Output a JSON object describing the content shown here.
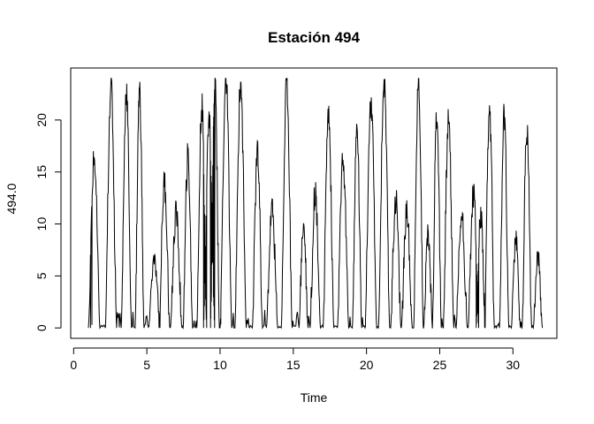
{
  "chart_data": {
    "type": "line",
    "title": "Estación 494",
    "xlabel": "Time",
    "ylabel": "494.0",
    "xlim": [
      -0.2,
      33.0
    ],
    "ylim": [
      -1.0,
      25.0
    ],
    "xticks": [
      0,
      5,
      10,
      15,
      20,
      25,
      30
    ],
    "xtick_labels": [
      "0",
      "5",
      "10",
      "15",
      "20",
      "25",
      "30"
    ],
    "yticks": [
      0,
      5,
      10,
      15,
      20
    ],
    "ytick_labels": [
      "0",
      "5",
      "10",
      "15",
      "20"
    ],
    "line_color": "#000000",
    "grid": false,
    "series": [
      {
        "peaks": [
          [
            1.4,
            16.3
          ],
          [
            2.55,
            23.6
          ],
          [
            3.6,
            22.8
          ],
          [
            4.5,
            22.9
          ],
          [
            5.5,
            6.5
          ],
          [
            6.2,
            14.0
          ],
          [
            7.0,
            11.0
          ],
          [
            7.8,
            16.5
          ],
          [
            8.75,
            21.3
          ],
          [
            9.25,
            20.0
          ],
          [
            9.65,
            23.9
          ],
          [
            10.4,
            23.9
          ],
          [
            11.4,
            23.5
          ],
          [
            12.55,
            16.8
          ],
          [
            13.55,
            11.5
          ],
          [
            14.55,
            23.8
          ],
          [
            15.7,
            10.0
          ],
          [
            16.5,
            13.2
          ],
          [
            17.4,
            20.7
          ],
          [
            18.4,
            16.0
          ],
          [
            19.35,
            19.1
          ],
          [
            20.3,
            21.7
          ],
          [
            21.2,
            23.6
          ],
          [
            22.0,
            12.5
          ],
          [
            22.75,
            11.2
          ],
          [
            23.55,
            24.0
          ],
          [
            24.2,
            9.0
          ],
          [
            24.8,
            20.7
          ],
          [
            25.6,
            20.0
          ],
          [
            26.5,
            11.0
          ],
          [
            27.3,
            13.0
          ],
          [
            27.8,
            10.8
          ],
          [
            28.4,
            20.8
          ],
          [
            29.4,
            20.3
          ],
          [
            30.2,
            8.5
          ],
          [
            30.95,
            19.2
          ],
          [
            31.7,
            7.0
          ]
        ]
      }
    ]
  }
}
